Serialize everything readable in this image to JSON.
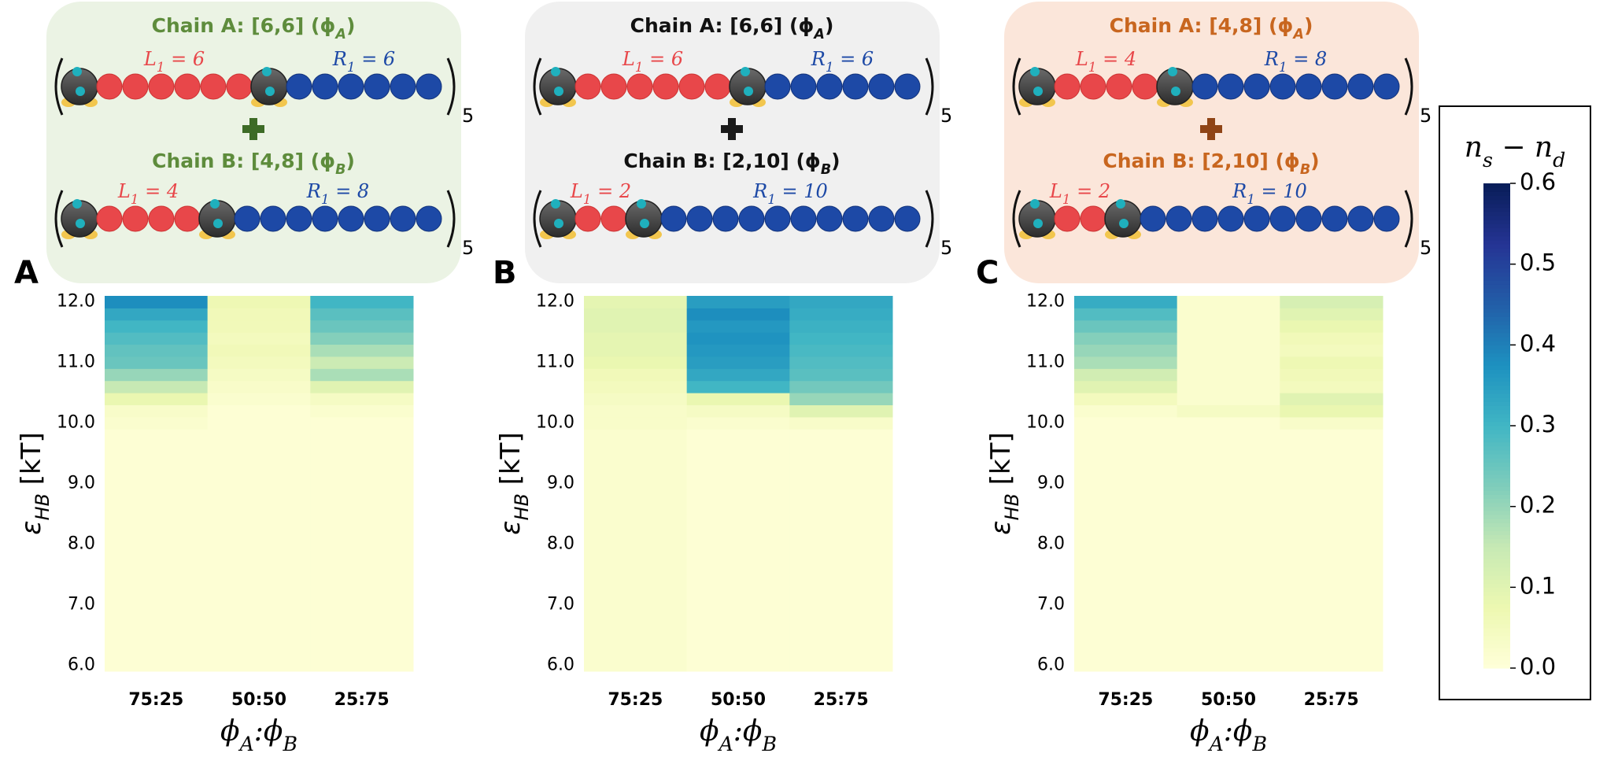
{
  "schematics": [
    {
      "chain_a": {
        "title": [
          "Chain A: [6,6] (ϕ",
          "A",
          ")"
        ],
        "left": [
          "L",
          "1",
          " = 6"
        ],
        "right": [
          "R",
          "1",
          " = 6"
        ],
        "repeat": "5"
      },
      "chain_b": {
        "title": [
          "Chain B: [4,8] (ϕ",
          "B",
          ")"
        ],
        "left": [
          "L",
          "1",
          " = 4"
        ],
        "right": [
          "R",
          "1",
          " = 8"
        ],
        "repeat": "5"
      },
      "text_color": "#5e8c3c",
      "box_color": "#ebf3e4",
      "plus_color": "#3d6b26"
    },
    {
      "chain_a": {
        "title": [
          "Chain A: [6,6] (ϕ",
          "A",
          ")"
        ],
        "left": [
          "L",
          "1",
          " = 6"
        ],
        "right": [
          "R",
          "1",
          " = 6"
        ],
        "repeat": "5"
      },
      "chain_b": {
        "title": [
          "Chain B: [2,10] (ϕ",
          "B",
          ")"
        ],
        "left": [
          "L",
          "1",
          " = 2"
        ],
        "right": [
          "R",
          "1",
          " = 10"
        ],
        "repeat": "5"
      },
      "text_color": "#111111",
      "box_color": "#f0f0f0",
      "plus_color": "#1a1a1a"
    },
    {
      "chain_a": {
        "title": [
          "Chain A: [4,8] (ϕ",
          "A",
          ")"
        ],
        "left": [
          "L",
          "1",
          " = 4"
        ],
        "right": [
          "R",
          "1",
          " = 8"
        ],
        "repeat": "5"
      },
      "chain_b": {
        "title": [
          "Chain B: [2,10] (ϕ",
          "B",
          ")"
        ],
        "left": [
          "L",
          "1",
          " = 2"
        ],
        "right": [
          "R",
          "1",
          " = 10"
        ],
        "repeat": "5"
      },
      "text_color": "#c8661f",
      "box_color": "#fbe6da",
      "plus_color": "#8f4416"
    }
  ],
  "chart_data": [
    {
      "type": "heatmap",
      "panel_label": "A",
      "categories": [
        "75:25",
        "50:50",
        "25:75"
      ],
      "y": [
        6.0,
        6.2,
        6.4,
        6.6,
        6.8,
        7.0,
        7.2,
        7.4,
        7.6,
        7.8,
        8.0,
        8.2,
        8.4,
        8.6,
        8.8,
        9.0,
        9.2,
        9.4,
        9.6,
        9.8,
        10.0,
        10.2,
        10.4,
        10.6,
        10.8,
        11.0,
        11.2,
        11.4,
        11.6,
        11.8,
        12.0
      ],
      "values": [
        [
          0.01,
          0.01,
          0.01
        ],
        [
          0.01,
          0.01,
          0.01
        ],
        [
          0.01,
          0.01,
          0.01
        ],
        [
          0.01,
          0.01,
          0.01
        ],
        [
          0.01,
          0.01,
          0.01
        ],
        [
          0.01,
          0.01,
          0.01
        ],
        [
          0.01,
          0.01,
          0.01
        ],
        [
          0.01,
          0.01,
          0.01
        ],
        [
          0.01,
          0.01,
          0.01
        ],
        [
          0.01,
          0.01,
          0.01
        ],
        [
          0.01,
          0.01,
          0.01
        ],
        [
          0.01,
          0.01,
          0.01
        ],
        [
          0.01,
          0.01,
          0.01
        ],
        [
          0.01,
          0.01,
          0.01
        ],
        [
          0.01,
          0.01,
          0.01
        ],
        [
          0.01,
          0.01,
          0.01
        ],
        [
          0.01,
          0.01,
          0.01
        ],
        [
          0.01,
          0.01,
          0.01
        ],
        [
          0.01,
          0.01,
          0.01
        ],
        [
          0.01,
          0.01,
          0.01
        ],
        [
          0.02,
          0.01,
          0.01
        ],
        [
          0.03,
          0.01,
          0.02
        ],
        [
          0.08,
          0.02,
          0.04
        ],
        [
          0.15,
          0.03,
          0.1
        ],
        [
          0.2,
          0.04,
          0.18
        ],
        [
          0.25,
          0.05,
          0.14
        ],
        [
          0.26,
          0.06,
          0.18
        ],
        [
          0.28,
          0.05,
          0.22
        ],
        [
          0.3,
          0.06,
          0.25
        ],
        [
          0.33,
          0.06,
          0.27
        ],
        [
          0.38,
          0.07,
          0.3
        ]
      ],
      "ylim": [
        5.9,
        12.1
      ],
      "yticks": [
        {
          "value": 6,
          "label": "6.0"
        },
        {
          "value": 7,
          "label": "7.0"
        },
        {
          "value": 8,
          "label": "8.0"
        },
        {
          "value": 9,
          "label": "9.0"
        },
        {
          "value": 10,
          "label": "10.0"
        },
        {
          "value": 11,
          "label": "11.0"
        },
        {
          "value": 12,
          "label": "12.0"
        }
      ],
      "xlabel": [
        "ϕ",
        "A",
        ":ϕ",
        "B"
      ],
      "ylabel": [
        "ε",
        "HB",
        " [kT]"
      ]
    },
    {
      "type": "heatmap",
      "panel_label": "B",
      "categories": [
        "75:25",
        "50:50",
        "25:75"
      ],
      "y": [
        6.0,
        6.2,
        6.4,
        6.6,
        6.8,
        7.0,
        7.2,
        7.4,
        7.6,
        7.8,
        8.0,
        8.2,
        8.4,
        8.6,
        8.8,
        9.0,
        9.2,
        9.4,
        9.6,
        9.8,
        10.0,
        10.2,
        10.4,
        10.6,
        10.8,
        11.0,
        11.2,
        11.4,
        11.6,
        11.8,
        12.0
      ],
      "values": [
        [
          0.02,
          0.01,
          0.01
        ],
        [
          0.02,
          0.01,
          0.01
        ],
        [
          0.02,
          0.01,
          0.01
        ],
        [
          0.02,
          0.01,
          0.01
        ],
        [
          0.02,
          0.01,
          0.01
        ],
        [
          0.02,
          0.01,
          0.01
        ],
        [
          0.02,
          0.01,
          0.01
        ],
        [
          0.02,
          0.01,
          0.01
        ],
        [
          0.02,
          0.01,
          0.01
        ],
        [
          0.02,
          0.01,
          0.01
        ],
        [
          0.02,
          0.01,
          0.01
        ],
        [
          0.02,
          0.01,
          0.01
        ],
        [
          0.02,
          0.01,
          0.01
        ],
        [
          0.02,
          0.01,
          0.01
        ],
        [
          0.02,
          0.01,
          0.01
        ],
        [
          0.02,
          0.01,
          0.01
        ],
        [
          0.02,
          0.01,
          0.01
        ],
        [
          0.02,
          0.01,
          0.01
        ],
        [
          0.02,
          0.01,
          0.01
        ],
        [
          0.02,
          0.01,
          0.01
        ],
        [
          0.03,
          0.02,
          0.03
        ],
        [
          0.03,
          0.04,
          0.1
        ],
        [
          0.04,
          0.08,
          0.2
        ],
        [
          0.05,
          0.3,
          0.24
        ],
        [
          0.06,
          0.33,
          0.27
        ],
        [
          0.08,
          0.35,
          0.28
        ],
        [
          0.09,
          0.36,
          0.29
        ],
        [
          0.09,
          0.37,
          0.3
        ],
        [
          0.1,
          0.36,
          0.31
        ],
        [
          0.1,
          0.38,
          0.32
        ],
        [
          0.09,
          0.35,
          0.33
        ]
      ],
      "ylim": [
        5.9,
        12.1
      ],
      "yticks": [
        {
          "value": 6,
          "label": "6.0"
        },
        {
          "value": 7,
          "label": "7.0"
        },
        {
          "value": 8,
          "label": "8.0"
        },
        {
          "value": 9,
          "label": "9.0"
        },
        {
          "value": 10,
          "label": "10.0"
        },
        {
          "value": 11,
          "label": "11.0"
        },
        {
          "value": 12,
          "label": "12.0"
        }
      ],
      "xlabel": [
        "ϕ",
        "A",
        ":ϕ",
        "B"
      ],
      "ylabel": [
        "ε",
        "HB",
        " [kT]"
      ]
    },
    {
      "type": "heatmap",
      "panel_label": "C",
      "categories": [
        "75:25",
        "50:50",
        "25:75"
      ],
      "y": [
        6.0,
        6.2,
        6.4,
        6.6,
        6.8,
        7.0,
        7.2,
        7.4,
        7.6,
        7.8,
        8.0,
        8.2,
        8.4,
        8.6,
        8.8,
        9.0,
        9.2,
        9.4,
        9.6,
        9.8,
        10.0,
        10.2,
        10.4,
        10.6,
        10.8,
        11.0,
        11.2,
        11.4,
        11.6,
        11.8,
        12.0
      ],
      "values": [
        [
          0.01,
          0.01,
          0.01
        ],
        [
          0.01,
          0.01,
          0.01
        ],
        [
          0.01,
          0.01,
          0.01
        ],
        [
          0.01,
          0.01,
          0.01
        ],
        [
          0.01,
          0.01,
          0.01
        ],
        [
          0.01,
          0.01,
          0.01
        ],
        [
          0.01,
          0.01,
          0.01
        ],
        [
          0.01,
          0.01,
          0.01
        ],
        [
          0.01,
          0.01,
          0.01
        ],
        [
          0.01,
          0.01,
          0.01
        ],
        [
          0.01,
          0.01,
          0.01
        ],
        [
          0.01,
          0.01,
          0.01
        ],
        [
          0.01,
          0.01,
          0.01
        ],
        [
          0.01,
          0.01,
          0.01
        ],
        [
          0.01,
          0.01,
          0.01
        ],
        [
          0.01,
          0.01,
          0.01
        ],
        [
          0.01,
          0.01,
          0.01
        ],
        [
          0.01,
          0.01,
          0.01
        ],
        [
          0.01,
          0.01,
          0.01
        ],
        [
          0.01,
          0.01,
          0.01
        ],
        [
          0.01,
          0.01,
          0.03
        ],
        [
          0.02,
          0.04,
          0.08
        ],
        [
          0.05,
          0.02,
          0.1
        ],
        [
          0.1,
          0.02,
          0.05
        ],
        [
          0.13,
          0.02,
          0.06
        ],
        [
          0.18,
          0.02,
          0.07
        ],
        [
          0.2,
          0.02,
          0.05
        ],
        [
          0.22,
          0.02,
          0.06
        ],
        [
          0.25,
          0.02,
          0.08
        ],
        [
          0.28,
          0.02,
          0.1
        ],
        [
          0.32,
          0.02,
          0.12
        ]
      ],
      "ylim": [
        5.9,
        12.1
      ],
      "yticks": [
        {
          "value": 6,
          "label": "6.0"
        },
        {
          "value": 7,
          "label": "7.0"
        },
        {
          "value": 8,
          "label": "8.0"
        },
        {
          "value": 9,
          "label": "9.0"
        },
        {
          "value": 10,
          "label": "10.0"
        },
        {
          "value": 11,
          "label": "11.0"
        },
        {
          "value": 12,
          "label": "12.0"
        }
      ],
      "xlabel": [
        "ϕ",
        "A",
        ":ϕ",
        "B"
      ],
      "ylabel": [
        "ε",
        "HB",
        " [kT]"
      ]
    }
  ],
  "colorbar": {
    "label": [
      "n",
      "s",
      " − n",
      "d"
    ],
    "zlim": [
      0,
      0.6
    ],
    "ticks": [
      {
        "value": 0,
        "label": "0.0"
      },
      0.1,
      0.2,
      0.3,
      0.4,
      0.5,
      0.6
    ],
    "colors": [
      "#ffffd9",
      "#edf8b1",
      "#c7e9b4",
      "#7fcdbb",
      "#41b6c4",
      "#1d91c0",
      "#225ea8",
      "#253494",
      "#081d58"
    ]
  }
}
